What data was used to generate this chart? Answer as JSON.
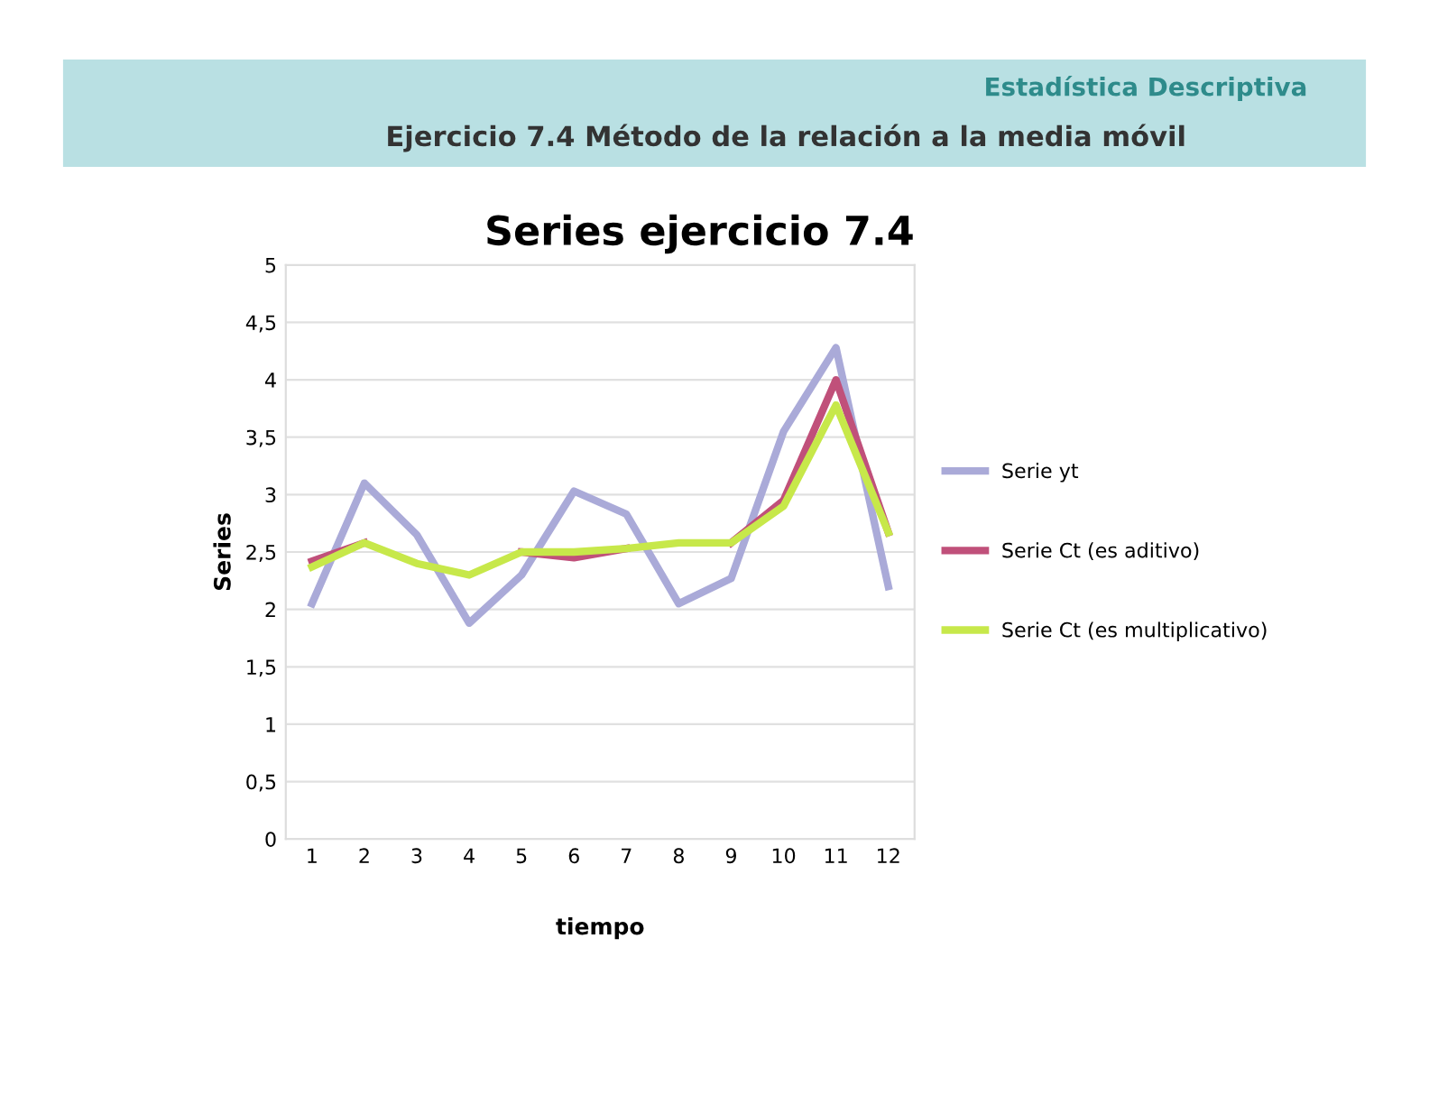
{
  "chart_data": {
    "type": "line",
    "title": "Series ejercicio 7.4",
    "xlabel": "tiempo",
    "ylabel": "Series",
    "annotations": [
      "Estadística Descriptiva",
      "Ejercicio 7.4 Método de la relación a la media móvil"
    ],
    "categories": [
      "1",
      "2",
      "3",
      "4",
      "5",
      "6",
      "7",
      "8",
      "9",
      "10",
      "11",
      "12"
    ],
    "series": [
      {
        "name": "Serie yt",
        "color": "#aaaad8",
        "values": [
          2.05,
          3.1,
          2.65,
          1.88,
          2.3,
          3.03,
          2.83,
          2.05,
          2.27,
          3.55,
          4.28,
          2.2
        ]
      },
      {
        "name": "Serie Ct (es aditivo)",
        "color": "#c0507a",
        "values": [
          2.42,
          2.58,
          null,
          null,
          2.5,
          2.45,
          2.53,
          null,
          2.58,
          2.95,
          4.0,
          2.67
        ]
      },
      {
        "name": "Serie Ct (es multiplicativo)",
        "color": "#c7e84a",
        "values": [
          2.37,
          2.58,
          2.4,
          2.3,
          2.5,
          2.5,
          2.53,
          2.58,
          2.58,
          2.9,
          3.78,
          2.67
        ]
      }
    ],
    "ylim": [
      0,
      5
    ],
    "yticks": [
      0,
      {
        "value": 0.5,
        "label": "0,5"
      },
      1,
      {
        "value": 1.5,
        "label": "1,5"
      },
      2,
      {
        "value": 2.5,
        "label": "2,5"
      },
      3,
      {
        "value": 3.5,
        "label": "3,5"
      },
      4,
      {
        "value": 4.5,
        "label": "4,5"
      },
      5
    ],
    "grid": "y",
    "legend": "right",
    "marker": "none",
    "line_style": "solid"
  }
}
